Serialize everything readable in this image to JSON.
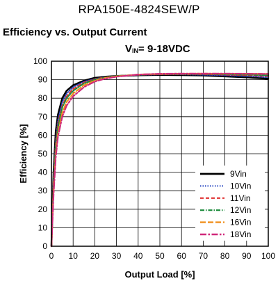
{
  "header": {
    "part_number": "RPA150E-4824SEW/P"
  },
  "chart_data": {
    "type": "line",
    "title": "Efficiency vs. Output Current",
    "condition": {
      "prefix": "V",
      "sub": "IN",
      "suffix": "= 9-18VDC"
    },
    "xlabel": "Output Load [%]",
    "ylabel": "Efficiency [%]",
    "xlim": [
      0,
      100
    ],
    "ylim": [
      0,
      100
    ],
    "xticks": [
      0,
      10,
      20,
      30,
      40,
      50,
      60,
      70,
      80,
      90,
      100
    ],
    "yticks": [
      0,
      10,
      20,
      30,
      40,
      50,
      60,
      70,
      80,
      90,
      100
    ],
    "grid": true,
    "legend_position": "bottom-right",
    "series": [
      {
        "name": "9Vin",
        "color": "#000000",
        "dash": "solid",
        "x": [
          0,
          1,
          2,
          3,
          5,
          7,
          10,
          15,
          20,
          25,
          30,
          40,
          50,
          60,
          70,
          80,
          90,
          100
        ],
        "y": [
          0,
          40,
          62,
          71,
          80,
          84,
          87,
          89.5,
          91,
          91.6,
          92,
          92.4,
          92.6,
          92.5,
          92.3,
          91.8,
          91.3,
          90.5
        ]
      },
      {
        "name": "10Vin",
        "color": "#1f3fbf",
        "dash": "dotted",
        "x": [
          0,
          1,
          2,
          3,
          5,
          7,
          10,
          15,
          20,
          25,
          30,
          40,
          50,
          60,
          70,
          80,
          90,
          100
        ],
        "y": [
          0,
          37,
          58,
          68,
          78,
          82.5,
          86,
          89,
          90.5,
          91.4,
          92,
          92.5,
          92.8,
          92.8,
          92.6,
          92.3,
          91.9,
          91.3
        ]
      },
      {
        "name": "11Vin",
        "color": "#e03030",
        "dash": "dashed",
        "x": [
          0,
          1,
          2,
          3,
          5,
          7,
          10,
          15,
          20,
          25,
          30,
          40,
          50,
          60,
          70,
          80,
          90,
          100
        ],
        "y": [
          0,
          35,
          56,
          66,
          76,
          81,
          85,
          88.5,
          90.3,
          91.3,
          92,
          92.6,
          92.9,
          93,
          92.9,
          92.7,
          92.4,
          92
        ]
      },
      {
        "name": "12Vin",
        "color": "#1a8a3a",
        "dash": "dashdot",
        "x": [
          0,
          1,
          2,
          3,
          5,
          7,
          10,
          15,
          20,
          25,
          30,
          40,
          50,
          60,
          70,
          80,
          90,
          100
        ],
        "y": [
          0,
          33,
          54,
          64,
          75,
          80,
          84,
          88,
          90,
          91.2,
          92,
          92.7,
          93,
          93.1,
          93.1,
          92.9,
          92.7,
          92.4
        ]
      },
      {
        "name": "16Vin",
        "color": "#f0901e",
        "dash": "longdash",
        "x": [
          0,
          1,
          2,
          3,
          5,
          7,
          10,
          15,
          20,
          25,
          30,
          40,
          50,
          60,
          70,
          80,
          90,
          100
        ],
        "y": [
          0,
          30,
          50,
          61,
          72,
          78,
          82.5,
          87,
          89.5,
          91,
          91.8,
          92.8,
          93.1,
          93.2,
          93.3,
          93.2,
          93.2,
          93.1
        ]
      },
      {
        "name": "18Vin",
        "color": "#d0287a",
        "dash": "dashdot2",
        "x": [
          0,
          1,
          2,
          3,
          5,
          7,
          10,
          15,
          20,
          25,
          30,
          40,
          50,
          60,
          70,
          80,
          90,
          100
        ],
        "y": [
          0,
          28,
          48,
          59,
          70,
          76,
          81,
          86,
          89,
          90.6,
          91.6,
          92.8,
          93.2,
          93.3,
          93.3,
          93.3,
          93.2,
          93.1
        ]
      }
    ]
  }
}
